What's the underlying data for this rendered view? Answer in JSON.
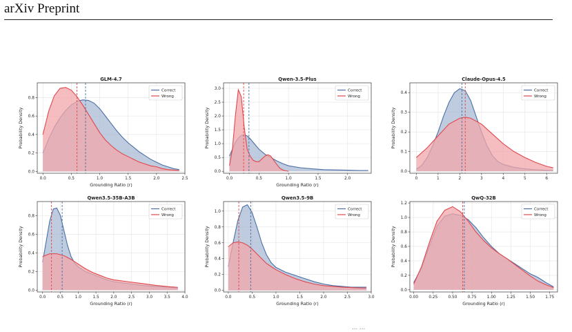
{
  "page": {
    "header": "arXiv Preprint",
    "caption_fragment": "... ..."
  },
  "legend": {
    "correct": "Correct",
    "wrong": "Wrong"
  },
  "colors": {
    "correct": "#4a6fa5",
    "wrong": "#e0474c",
    "correct_fill": "#a9b9d3",
    "wrong_fill": "#f2a7a9",
    "grid": "#e3e3e3"
  },
  "chart_data": [
    {
      "type": "area",
      "title": "GLM-4.7",
      "xlabel": "Grounding Ratio (r)",
      "ylabel": "Probability Density",
      "xlim": [
        -0.1,
        2.5
      ],
      "ylim": [
        -0.02,
        0.96
      ],
      "xticks": [
        "0.0",
        "0.5",
        "1.0",
        "1.5",
        "2.0",
        "2.5"
      ],
      "xtick_values": [
        0,
        0.5,
        1,
        1.5,
        2,
        2.5
      ],
      "yticks": [
        "0.0",
        "0.2",
        "0.4",
        "0.6",
        "0.8"
      ],
      "ytick_values": [
        0,
        0.2,
        0.4,
        0.6,
        0.8
      ],
      "grid": true,
      "legend_position": "top-right",
      "series": [
        {
          "name": "Correct",
          "mean": 0.75,
          "x": [
            0,
            0.1,
            0.2,
            0.3,
            0.4,
            0.5,
            0.6,
            0.7,
            0.8,
            0.9,
            1.0,
            1.1,
            1.2,
            1.3,
            1.4,
            1.5,
            1.6,
            1.7,
            1.8,
            1.9,
            2.0,
            2.1,
            2.2,
            2.3,
            2.4
          ],
          "y": [
            0.2,
            0.35,
            0.48,
            0.58,
            0.66,
            0.72,
            0.76,
            0.775,
            0.77,
            0.74,
            0.68,
            0.6,
            0.52,
            0.44,
            0.37,
            0.31,
            0.26,
            0.21,
            0.17,
            0.13,
            0.1,
            0.07,
            0.05,
            0.03,
            0.02
          ]
        },
        {
          "name": "Wrong",
          "mean": 0.6,
          "x": [
            0,
            0.1,
            0.2,
            0.3,
            0.4,
            0.5,
            0.6,
            0.7,
            0.8,
            0.9,
            1.0,
            1.1,
            1.2,
            1.3,
            1.4,
            1.5,
            1.6,
            1.7,
            1.8,
            1.9,
            2.0,
            2.1,
            2.2,
            2.3,
            2.4
          ],
          "y": [
            0.4,
            0.65,
            0.82,
            0.9,
            0.91,
            0.88,
            0.81,
            0.72,
            0.62,
            0.52,
            0.42,
            0.34,
            0.28,
            0.23,
            0.19,
            0.16,
            0.13,
            0.1,
            0.08,
            0.06,
            0.05,
            0.03,
            0.02,
            0.015,
            0.01
          ]
        }
      ]
    },
    {
      "type": "area",
      "title": "Qwen-3.5-Plus",
      "xlabel": "Grounding Ratio (r)",
      "ylabel": "Probability Density",
      "xlim": [
        -0.1,
        2.4
      ],
      "ylim": [
        -0.07,
        3.2
      ],
      "xticks": [
        "0.0",
        "0.5",
        "1.0",
        "1.5",
        "2.0"
      ],
      "xtick_values": [
        0,
        0.5,
        1,
        1.5,
        2
      ],
      "yticks": [
        "0.0",
        "0.5",
        "1.0",
        "1.5",
        "2.0",
        "2.5",
        "3.0"
      ],
      "ytick_values": [
        0,
        0.5,
        1,
        1.5,
        2,
        2.5,
        3
      ],
      "grid": true,
      "legend_position": "top-right",
      "series": [
        {
          "name": "Correct",
          "mean": 0.33,
          "x": [
            0,
            0.05,
            0.1,
            0.15,
            0.2,
            0.25,
            0.3,
            0.35,
            0.4,
            0.5,
            0.6,
            0.7,
            0.8,
            0.9,
            1.0,
            1.2,
            1.4,
            1.6,
            1.8,
            2.0,
            2.2,
            2.35
          ],
          "y": [
            0.55,
            0.8,
            1.05,
            1.2,
            1.3,
            1.32,
            1.28,
            1.18,
            1.05,
            0.8,
            0.62,
            0.5,
            0.38,
            0.28,
            0.2,
            0.13,
            0.09,
            0.06,
            0.05,
            0.04,
            0.03,
            0.03
          ]
        },
        {
          "name": "Wrong",
          "mean": 0.24,
          "x": [
            0,
            0.05,
            0.1,
            0.15,
            0.2,
            0.25,
            0.3,
            0.35,
            0.4,
            0.45,
            0.5,
            0.55,
            0.6,
            0.65,
            0.7,
            0.75,
            0.8,
            0.85,
            0.9,
            0.95,
            1.0
          ],
          "y": [
            0.2,
            0.8,
            2.0,
            2.95,
            2.7,
            1.6,
            0.8,
            0.55,
            0.4,
            0.35,
            0.35,
            0.45,
            0.55,
            0.6,
            0.55,
            0.4,
            0.25,
            0.12,
            0.05,
            0.02,
            0.0
          ]
        }
      ]
    },
    {
      "type": "area",
      "title": "Claude-Opus-4.5",
      "xlabel": "",
      "ylabel": "Probability Density",
      "xlim": [
        -0.3,
        6.5
      ],
      "ylim": [
        -0.01,
        0.45
      ],
      "xticks": [
        "0",
        "1",
        "2",
        "3",
        "4",
        "5",
        "6"
      ],
      "xtick_values": [
        0,
        1,
        2,
        3,
        4,
        5,
        6
      ],
      "yticks": [
        "0.0",
        "0.1",
        "0.2",
        "0.3",
        "0.4"
      ],
      "ytick_values": [
        0,
        0.1,
        0.2,
        0.3,
        0.4
      ],
      "grid": true,
      "legend_position": "top-right",
      "series": [
        {
          "name": "Correct",
          "mean": 2.1,
          "x": [
            0,
            0.25,
            0.5,
            0.75,
            1.0,
            1.25,
            1.5,
            1.75,
            2.0,
            2.25,
            2.5,
            2.75,
            3.0,
            3.25,
            3.5,
            3.75,
            4.0,
            4.5,
            5.0,
            5.5,
            6.0,
            6.3
          ],
          "y": [
            0.01,
            0.03,
            0.07,
            0.13,
            0.2,
            0.28,
            0.35,
            0.4,
            0.42,
            0.41,
            0.36,
            0.28,
            0.2,
            0.13,
            0.08,
            0.05,
            0.035,
            0.02,
            0.012,
            0.008,
            0.005,
            0.004
          ]
        },
        {
          "name": "Wrong",
          "mean": 2.25,
          "x": [
            0,
            0.5,
            1.0,
            1.5,
            2.0,
            2.25,
            2.5,
            3.0,
            3.5,
            4.0,
            4.5,
            5.0,
            5.5,
            6.0,
            6.3
          ],
          "y": [
            0.07,
            0.12,
            0.18,
            0.24,
            0.27,
            0.275,
            0.27,
            0.24,
            0.19,
            0.14,
            0.1,
            0.07,
            0.045,
            0.025,
            0.018
          ]
        }
      ]
    },
    {
      "type": "area",
      "title": "Qwen3.5-35B-A3B",
      "xlabel": "Grounding Ratio (r)",
      "ylabel": "Probability Density",
      "xlim": [
        -0.15,
        4.0
      ],
      "ylim": [
        -0.02,
        0.95
      ],
      "xticks": [
        "0.0",
        "0.5",
        "1.0",
        "1.5",
        "2.0",
        "2.5",
        "3.0",
        "3.5",
        "4.0"
      ],
      "xtick_values": [
        0,
        0.5,
        1,
        1.5,
        2,
        2.5,
        3,
        3.5,
        4
      ],
      "yticks": [
        "0.0",
        "0.2",
        "0.4",
        "0.6",
        "0.8"
      ],
      "ytick_values": [
        0,
        0.2,
        0.4,
        0.6,
        0.8
      ],
      "grid": true,
      "legend_position": "top-right",
      "series": [
        {
          "name": "Correct",
          "mean": 0.55,
          "x": [
            0,
            0.1,
            0.2,
            0.3,
            0.4,
            0.5,
            0.6,
            0.7,
            0.8,
            0.9,
            1.0,
            1.2,
            1.4,
            1.6,
            1.8,
            2.0,
            2.4,
            2.8,
            3.2,
            3.6,
            3.8
          ],
          "y": [
            0.3,
            0.52,
            0.74,
            0.87,
            0.88,
            0.8,
            0.64,
            0.48,
            0.36,
            0.29,
            0.25,
            0.2,
            0.17,
            0.14,
            0.11,
            0.09,
            0.07,
            0.05,
            0.04,
            0.03,
            0.02
          ]
        },
        {
          "name": "Wrong",
          "mean": 0.25,
          "x": [
            0,
            0.2,
            0.4,
            0.6,
            0.8,
            1.0,
            1.2,
            1.4,
            1.6,
            1.8,
            2.0,
            2.4,
            2.8,
            3.2,
            3.6,
            3.8
          ],
          "y": [
            0.36,
            0.39,
            0.39,
            0.37,
            0.33,
            0.28,
            0.23,
            0.19,
            0.16,
            0.13,
            0.11,
            0.09,
            0.07,
            0.05,
            0.035,
            0.03
          ]
        }
      ]
    },
    {
      "type": "area",
      "title": "Qwen3.5-9B",
      "xlabel": "Grounding Ratio (r)",
      "ylabel": "Probability Density",
      "xlim": [
        -0.1,
        3.0
      ],
      "ylim": [
        -0.02,
        1.12
      ],
      "xticks": [
        "0.0",
        "0.5",
        "1.0",
        "1.5",
        "2.0",
        "2.5",
        "3.0"
      ],
      "xtick_values": [
        0,
        0.5,
        1,
        1.5,
        2,
        2.5,
        3
      ],
      "yticks": [
        "0.0",
        "0.2",
        "0.4",
        "0.6",
        "0.8",
        "1.0"
      ],
      "ytick_values": [
        0,
        0.2,
        0.4,
        0.6,
        0.8,
        1.0
      ],
      "grid": true,
      "legend_position": "top-right",
      "series": [
        {
          "name": "Correct",
          "mean": 0.47,
          "x": [
            0,
            0.1,
            0.2,
            0.3,
            0.4,
            0.5,
            0.6,
            0.7,
            0.8,
            0.9,
            1.0,
            1.2,
            1.4,
            1.6,
            1.8,
            2.0,
            2.2,
            2.4,
            2.6,
            2.8,
            2.9
          ],
          "y": [
            0.3,
            0.6,
            0.88,
            1.05,
            1.08,
            0.98,
            0.8,
            0.6,
            0.45,
            0.35,
            0.29,
            0.23,
            0.19,
            0.15,
            0.11,
            0.08,
            0.06,
            0.05,
            0.04,
            0.04,
            0.04
          ]
        },
        {
          "name": "Wrong",
          "mean": 0.22,
          "x": [
            0,
            0.1,
            0.2,
            0.3,
            0.4,
            0.5,
            0.6,
            0.7,
            0.8,
            0.9,
            1.0,
            1.2,
            1.4,
            1.6,
            1.8,
            2.0,
            2.2,
            2.4,
            2.6,
            2.8,
            2.9
          ],
          "y": [
            0.55,
            0.6,
            0.61,
            0.6,
            0.57,
            0.52,
            0.46,
            0.4,
            0.34,
            0.3,
            0.26,
            0.2,
            0.15,
            0.11,
            0.08,
            0.06,
            0.05,
            0.04,
            0.035,
            0.03,
            0.03
          ]
        }
      ]
    },
    {
      "type": "area",
      "title": "QwQ-32B",
      "xlabel": "Grounding Ratio (r)",
      "ylabel": "Probability Density",
      "xlim": [
        -0.05,
        1.85
      ],
      "ylim": [
        -0.03,
        1.22
      ],
      "xticks": [
        "0.00",
        "0.25",
        "0.50",
        "0.75",
        "1.00",
        "1.25",
        "1.50",
        "1.75"
      ],
      "xtick_values": [
        0,
        0.25,
        0.5,
        0.75,
        1,
        1.25,
        1.5,
        1.75
      ],
      "yticks": [
        "0.0",
        "0.2",
        "0.4",
        "0.6",
        "0.8",
        "1.0",
        "1.2"
      ],
      "ytick_values": [
        0,
        0.2,
        0.4,
        0.6,
        0.8,
        1.0,
        1.2
      ],
      "grid": true,
      "legend_position": "top-right",
      "series": [
        {
          "name": "Correct",
          "mean": 0.65,
          "x": [
            0,
            0.1,
            0.2,
            0.3,
            0.4,
            0.5,
            0.6,
            0.7,
            0.8,
            0.9,
            1.0,
            1.1,
            1.2,
            1.3,
            1.4,
            1.5,
            1.6,
            1.7,
            1.8
          ],
          "y": [
            0.1,
            0.3,
            0.6,
            0.88,
            1.02,
            1.05,
            1.03,
            0.97,
            0.86,
            0.72,
            0.6,
            0.5,
            0.43,
            0.36,
            0.29,
            0.22,
            0.17,
            0.1,
            0.04
          ]
        },
        {
          "name": "Wrong",
          "mean": 0.63,
          "x": [
            0,
            0.1,
            0.2,
            0.3,
            0.4,
            0.5,
            0.6,
            0.7,
            0.8,
            0.9,
            1.0,
            1.1,
            1.2,
            1.3,
            1.4,
            1.5,
            1.6,
            1.7,
            1.8
          ],
          "y": [
            0.08,
            0.32,
            0.65,
            0.95,
            1.1,
            1.15,
            1.08,
            0.95,
            0.8,
            0.68,
            0.58,
            0.5,
            0.43,
            0.35,
            0.27,
            0.19,
            0.12,
            0.07,
            0.03
          ]
        }
      ]
    }
  ]
}
